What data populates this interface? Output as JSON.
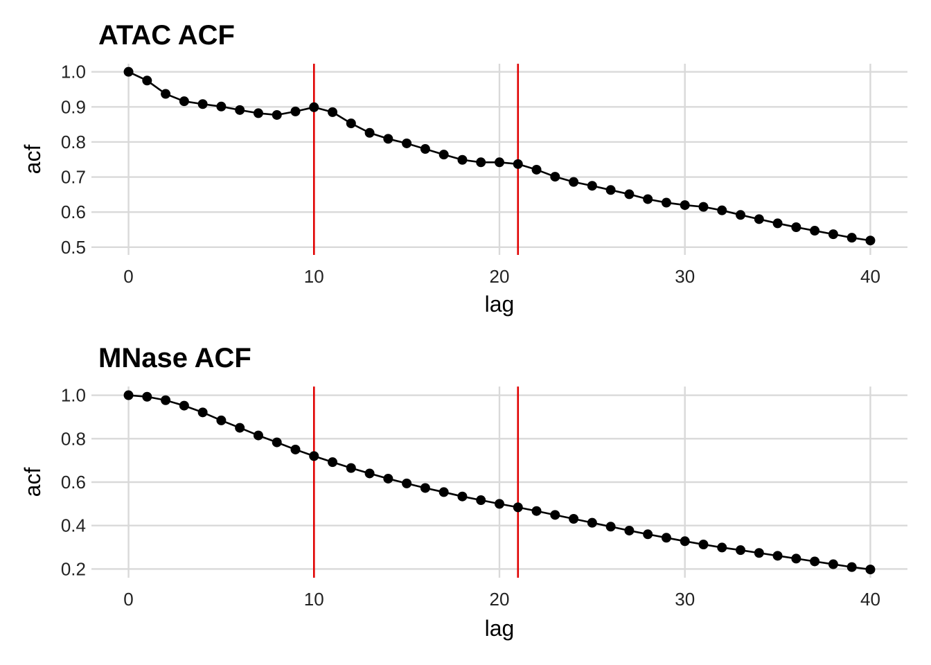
{
  "chart_data": [
    {
      "type": "line",
      "title": "ATAC ACF",
      "xlabel": "lag",
      "ylabel": "acf",
      "xlim": [
        -2,
        42
      ],
      "ylim": [
        0.478,
        1.023
      ],
      "xticks": [
        0,
        10,
        20,
        30,
        40
      ],
      "yticks": [
        0.5,
        0.6,
        0.7,
        0.8,
        0.9,
        1.0
      ],
      "xtick_labels": [
        "0",
        "10",
        "20",
        "30",
        "40"
      ],
      "ytick_labels": [
        "0.5",
        "0.6",
        "0.7",
        "0.8",
        "0.9",
        "1.0"
      ],
      "grid": true,
      "vlines": [
        10,
        21
      ],
      "vline_color": "#e00000",
      "series": [
        {
          "x": [
            0,
            1,
            2,
            3,
            4,
            5,
            6,
            7,
            8,
            9,
            10,
            11,
            12,
            13,
            14,
            15,
            16,
            17,
            18,
            19,
            20,
            21,
            22,
            23,
            24,
            25,
            26,
            27,
            28,
            29,
            30,
            31,
            32,
            33,
            34,
            35,
            36,
            37,
            38,
            39,
            40
          ],
          "values": [
            1.0,
            0.975,
            0.937,
            0.916,
            0.908,
            0.901,
            0.891,
            0.882,
            0.877,
            0.887,
            0.899,
            0.885,
            0.853,
            0.826,
            0.809,
            0.796,
            0.78,
            0.764,
            0.749,
            0.742,
            0.742,
            0.737,
            0.721,
            0.701,
            0.686,
            0.675,
            0.663,
            0.651,
            0.637,
            0.627,
            0.62,
            0.615,
            0.605,
            0.592,
            0.58,
            0.568,
            0.557,
            0.547,
            0.537,
            0.527,
            0.519
          ]
        }
      ]
    },
    {
      "type": "line",
      "title": "MNase ACF",
      "xlabel": "lag",
      "ylabel": "acf",
      "xlim": [
        -2,
        42
      ],
      "ylim": [
        0.16,
        1.04
      ],
      "xticks": [
        0,
        10,
        20,
        30,
        40
      ],
      "yticks": [
        0.2,
        0.4,
        0.6,
        0.8,
        1.0
      ],
      "xtick_labels": [
        "0",
        "10",
        "20",
        "30",
        "40"
      ],
      "ytick_labels": [
        "0.2",
        "0.4",
        "0.6",
        "0.8",
        "1.0"
      ],
      "grid": true,
      "vlines": [
        10,
        21
      ],
      "vline_color": "#e00000",
      "series": [
        {
          "x": [
            0,
            1,
            2,
            3,
            4,
            5,
            6,
            7,
            8,
            9,
            10,
            11,
            12,
            13,
            14,
            15,
            16,
            17,
            18,
            19,
            20,
            21,
            22,
            23,
            24,
            25,
            26,
            27,
            28,
            29,
            30,
            31,
            32,
            33,
            34,
            35,
            36,
            37,
            38,
            39,
            40
          ],
          "values": [
            1.0,
            0.993,
            0.977,
            0.952,
            0.921,
            0.884,
            0.85,
            0.815,
            0.783,
            0.75,
            0.72,
            0.692,
            0.665,
            0.64,
            0.616,
            0.594,
            0.573,
            0.554,
            0.534,
            0.517,
            0.5,
            0.484,
            0.467,
            0.449,
            0.431,
            0.413,
            0.395,
            0.377,
            0.36,
            0.344,
            0.328,
            0.313,
            0.299,
            0.287,
            0.274,
            0.261,
            0.248,
            0.235,
            0.222,
            0.209,
            0.198
          ]
        }
      ]
    }
  ]
}
